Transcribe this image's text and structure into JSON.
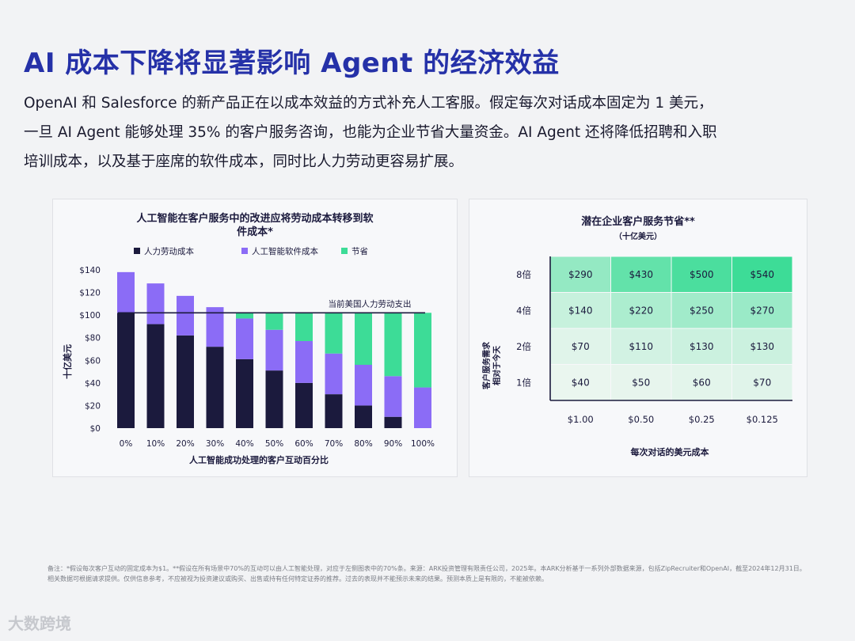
{
  "title": "AI 成本下降将显著影响 Agent 的经济效益",
  "body_lines": [
    "OpenAI 和 Salesforce 的新产品正在以成本效益的方式补充人工客服。假定每次对话成本固定为 1 美元，",
    "一旦 AI Agent  能够处理 35% 的客户服务咨询，也能为企业节省大量资金。AI Agent 还将降低招聘和入职",
    "培训成本，以及基于座席的软件成本，同时比人力劳动更容易扩展。"
  ],
  "chart_data": [
    {
      "type": "bar",
      "title": "人工智能在客户服务中的改进应将劳动成本转移到软件成本*",
      "title_lines": [
        "人工智能在客户服务中的改进应将劳动成本转移到软",
        "件成本*"
      ],
      "xlabel": "人工智能成功处理的客户互动百分比",
      "ylabel": "十亿美元",
      "categories": [
        "0%",
        "10%",
        "20%",
        "30%",
        "40%",
        "50%",
        "60%",
        "70%",
        "80%",
        "90%",
        "100%"
      ],
      "series": [
        {
          "name": "人力劳动成本",
          "color": "#1b1a3d",
          "values": [
            102,
            92,
            82,
            72,
            61,
            51,
            40,
            30,
            20,
            10,
            0
          ]
        },
        {
          "name": "人工智能软件成本",
          "color": "#8b6cf6",
          "values": [
            36,
            36,
            35,
            35,
            36,
            36,
            37,
            36,
            36,
            36,
            36
          ]
        },
        {
          "name": "节省",
          "color": "#3ddc97",
          "values": [
            0,
            0,
            0,
            0,
            5,
            15,
            25,
            36,
            46,
            56,
            66
          ]
        }
      ],
      "yticks": [
        "$0",
        "$20",
        "$40",
        "$60",
        "$80",
        "$100",
        "$120",
        "$140"
      ],
      "ylim": [
        0,
        140
      ],
      "reference_line": {
        "value": 102,
        "label": "当前美国人力劳动支出"
      }
    },
    {
      "type": "heatmap",
      "title": "潜在企业客户服务节省**",
      "subtitle": "（十亿美元）",
      "xlabel": "每次对话的美元成本",
      "ylabel_lines": [
        "客户服务需求",
        "相对于今天"
      ],
      "x": [
        "$1.00",
        "$0.50",
        "$0.25",
        "$0.125"
      ],
      "y": [
        "8倍",
        "4倍",
        "2倍",
        "1倍"
      ],
      "values": [
        [
          290,
          430,
          500,
          540
        ],
        [
          140,
          220,
          250,
          270
        ],
        [
          70,
          110,
          130,
          130
        ],
        [
          40,
          50,
          60,
          70
        ]
      ],
      "cell_labels": [
        [
          "$290",
          "$430",
          "$500",
          "$540"
        ],
        [
          "$140",
          "$220",
          "$250",
          "$270"
        ],
        [
          "$70",
          "$110",
          "$130",
          "$130"
        ],
        [
          "$40",
          "$50",
          "$60",
          "$70"
        ]
      ],
      "colors": {
        "high": "#3ddc97",
        "low": "#eaf6ef"
      }
    }
  ],
  "footnote": "备注：*假设每次客户互动的固定成本为$1。**假设在所有场景中70%的互动可以由人工智能处理，对应于左侧图表中的70%条。来源：ARK投资管理有限责任公司，2025年。本ARK分析基于一系列外部数据来源，包括ZipRecruiter和OpenAI，截至2024年12月31日。相关数据可根据请求提供。仅供信息参考，不应被视为投资建议或购买、出售或持有任何特定证券的推荐。过去的表现并不能预示未来的结果。预测本质上是有限的，不能被依赖。",
  "watermark": "大数跨境"
}
